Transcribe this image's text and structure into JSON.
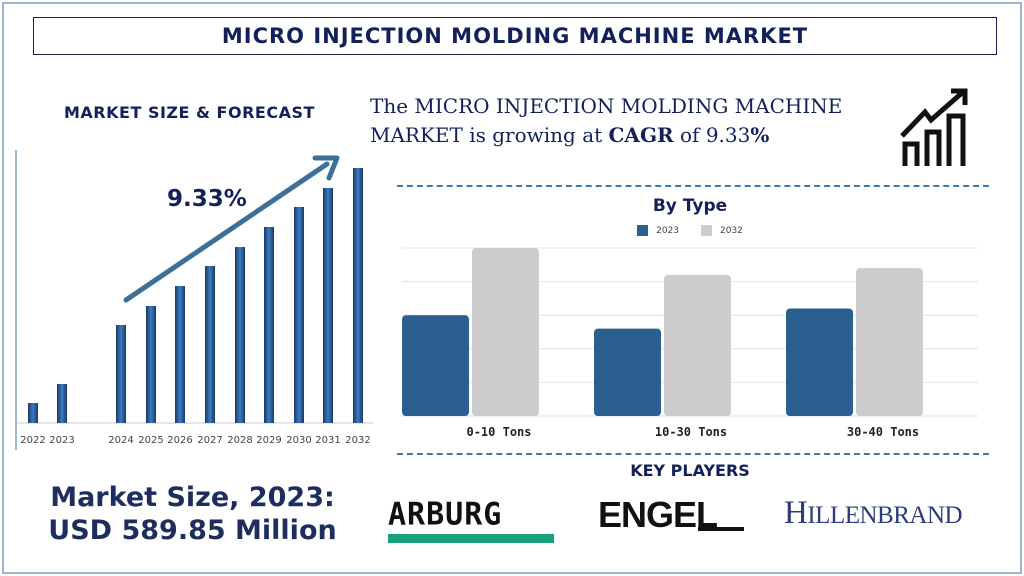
{
  "title": "MICRO INJECTION MOLDING MACHINE MARKET",
  "left": {
    "heading": "MARKET SIZE & FORECAST"
  },
  "cagr_statement": {
    "prefix": "The MICRO INJECTION MOLDING MACHINE MARKET is growing at ",
    "bold": "CAGR",
    "middle": " of 9.33",
    "suffix": "%"
  },
  "icons": {
    "top_right": "growth-chart-arrow-icon"
  },
  "market_size": {
    "line1": "Market Size, 2023:",
    "line2": "USD 589.85 Million"
  },
  "key_players": {
    "heading": "KEY PLAYERS",
    "logos": [
      "ARBURG",
      "ENGEL",
      "HILLENBRAND"
    ]
  },
  "colors": {
    "navy": "#13205a",
    "bar_blue": "#2a5f8f",
    "bar_gray": "#cccccc",
    "arrow": "#3e6f99",
    "dash": "#3a7bb4"
  },
  "chart_data": [
    {
      "type": "bar",
      "title": "",
      "categories": [
        "2022",
        "2023",
        "2024",
        "2025",
        "2026",
        "2027",
        "2028",
        "2029",
        "2030",
        "2031",
        "2032"
      ],
      "values": [
        20,
        39,
        98,
        117,
        137,
        157,
        176,
        196,
        216,
        235,
        255
      ],
      "annotation": "9.33%",
      "trend_arrow": true,
      "ylim": [
        0,
        270
      ],
      "grid": false,
      "units": "relative"
    },
    {
      "type": "bar",
      "title": "By Type",
      "categories": [
        "0-10 Tons",
        "10-30 Tons",
        "30-40 Tons"
      ],
      "series": [
        {
          "name": "2023",
          "values": [
            3.0,
            2.6,
            3.2
          ],
          "color": "#2a5f8f"
        },
        {
          "name": "2032",
          "values": [
            5.0,
            4.2,
            4.4
          ],
          "color": "#cccccc"
        }
      ],
      "ylim": [
        0,
        5
      ],
      "grid": true,
      "legend": "top",
      "units": "relative"
    }
  ]
}
